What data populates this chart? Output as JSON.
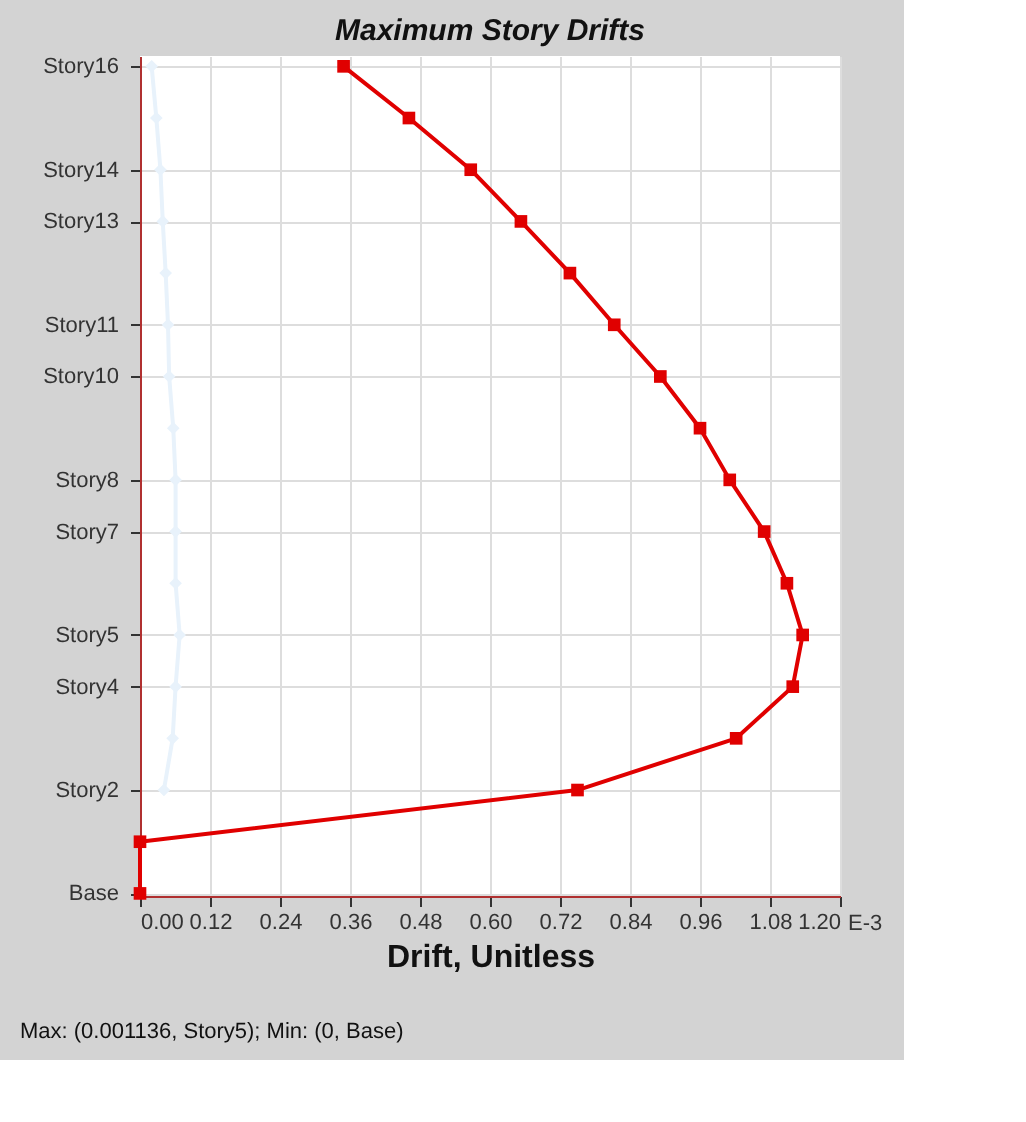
{
  "chart_data": {
    "type": "line",
    "orientation": "horizontal",
    "title": "Maximum Story Drifts",
    "xlabel": "Drift, Unitless",
    "xlim": [
      0,
      1.2
    ],
    "xticks": [
      {
        "value": 0,
        "label": "0.00"
      },
      {
        "value": 0.12,
        "label": "0.12"
      },
      {
        "value": 0.24,
        "label": "0.24"
      },
      {
        "value": 0.36,
        "label": "0.36"
      },
      {
        "value": 0.48,
        "label": "0.48"
      },
      {
        "value": 0.6,
        "label": "0.60"
      },
      {
        "value": 0.72,
        "label": "0.72"
      },
      {
        "value": 0.84,
        "label": "0.84"
      },
      {
        "value": 0.96,
        "label": "0.96"
      },
      {
        "value": 1.08,
        "label": "1.08"
      },
      {
        "value": 1.2,
        "label": "1.20"
      }
    ],
    "categories": [
      "Story16",
      null,
      "Story14",
      "Story13",
      null,
      "Story11",
      "Story10",
      null,
      "Story8",
      "Story7",
      null,
      "Story5",
      "Story4",
      null,
      "Story2",
      null,
      "Base"
    ],
    "grid": true,
    "series": [
      {
        "color": "#e8f2fb",
        "marker": "diamond",
        "values": [
          0.02,
          0.028,
          0.035,
          0.039,
          0.044,
          0.048,
          0.05,
          0.057,
          0.061,
          0.061,
          0.061,
          0.068,
          0.061,
          0.056,
          0.041,
          null,
          null
        ]
      },
      {
        "color": "#e00000",
        "marker": "square",
        "values": [
          0.349,
          0.461,
          0.567,
          0.653,
          0.737,
          0.813,
          0.892,
          0.96,
          1.011,
          1.07,
          1.109,
          1.136,
          1.119,
          1.022,
          0.75,
          0,
          0
        ]
      }
    ],
    "annotations": [
      "E-3",
      "Max: (0.001136, Story5);   Min: (0, Base)"
    ]
  }
}
